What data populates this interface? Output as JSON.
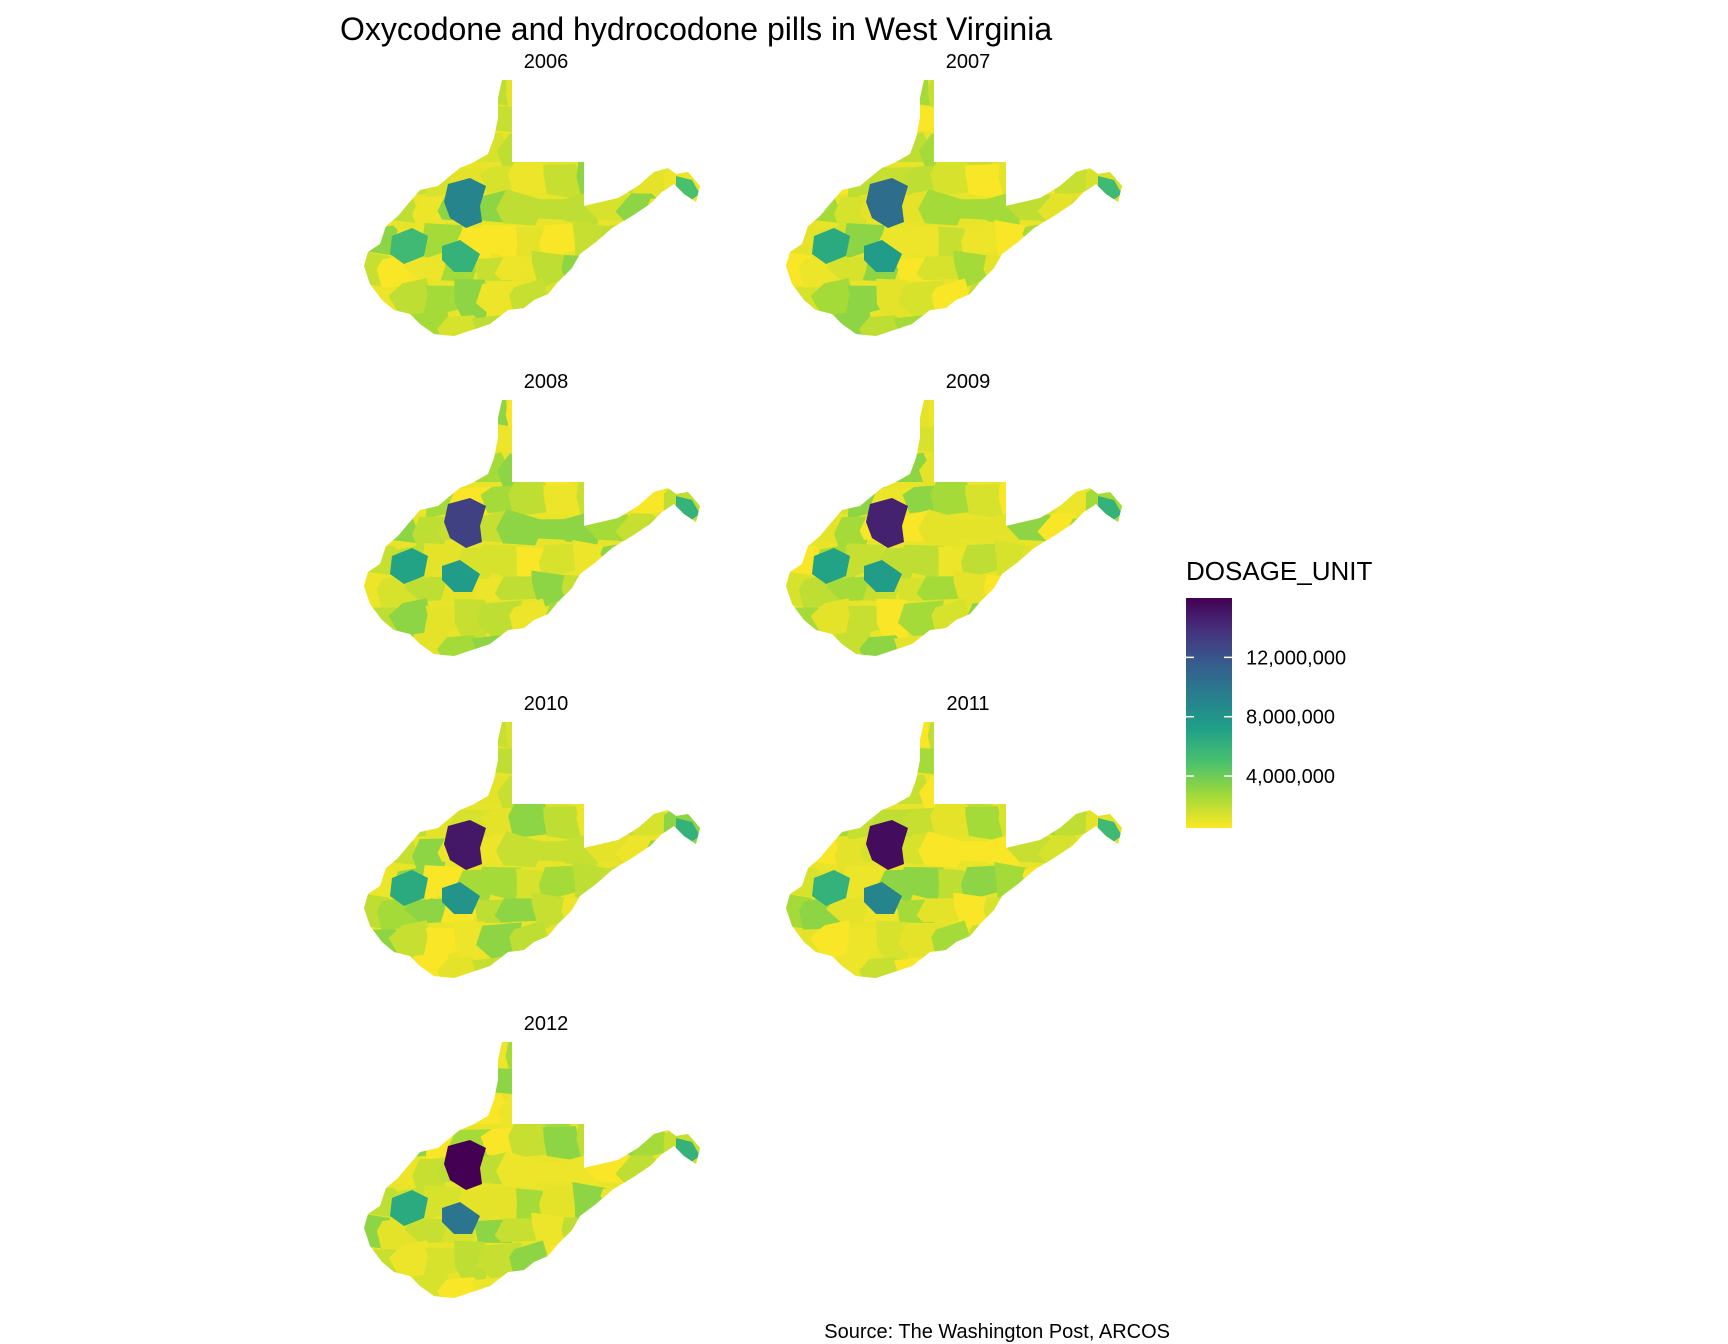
{
  "title": "Oxycodone and hydrocodone pills in West Virginia",
  "caption": "Source: The Washington Post, ARCOS",
  "legend": {
    "title": "DOSAGE_UNIT",
    "ticks": [
      {
        "label": "12,000,000",
        "value": 12000000
      },
      {
        "label": "8,000,000",
        "value": 8000000
      },
      {
        "label": "4,000,000",
        "value": 4000000
      }
    ],
    "min": 500000,
    "max": 16000000,
    "palette": [
      "#fde725",
      "#a0da39",
      "#4ac16d",
      "#1fa187",
      "#277f8e",
      "#365c8d",
      "#46327e",
      "#440154"
    ]
  },
  "chart_data": {
    "type": "choropleth",
    "region": "West Virginia counties",
    "variable": "DOSAGE_UNIT",
    "panels": [
      {
        "label": "2006",
        "year": 2006,
        "hotspot_levels": [
          9000000,
          9500000,
          7000000,
          6000000,
          5500000,
          4500000,
          5000000
        ]
      },
      {
        "label": "2007",
        "year": 2007,
        "hotspot_levels": [
          10500000,
          9000000,
          8000000,
          7500000,
          6500000,
          5000000,
          5500000
        ]
      },
      {
        "label": "2008",
        "year": 2008,
        "hotspot_levels": [
          13000000,
          10000000,
          8500000,
          7500000,
          7000000,
          5500000,
          6000000
        ]
      },
      {
        "label": "2009",
        "year": 2009,
        "hotspot_levels": [
          14500000,
          9500000,
          8000000,
          7500000,
          7000000,
          5500000,
          6000000
        ]
      },
      {
        "label": "2010",
        "year": 2010,
        "hotspot_levels": [
          15000000,
          10000000,
          6500000,
          8000000,
          6500000,
          5500000,
          6000000
        ]
      },
      {
        "label": "2011",
        "year": 2011,
        "hotspot_levels": [
          15500000,
          10000000,
          7000000,
          9000000,
          6000000,
          6000000,
          5500000
        ]
      },
      {
        "label": "2012",
        "year": 2012,
        "hotspot_levels": [
          16000000,
          9500000,
          6500000,
          10000000,
          6500000,
          6500000,
          6000000
        ]
      }
    ]
  }
}
